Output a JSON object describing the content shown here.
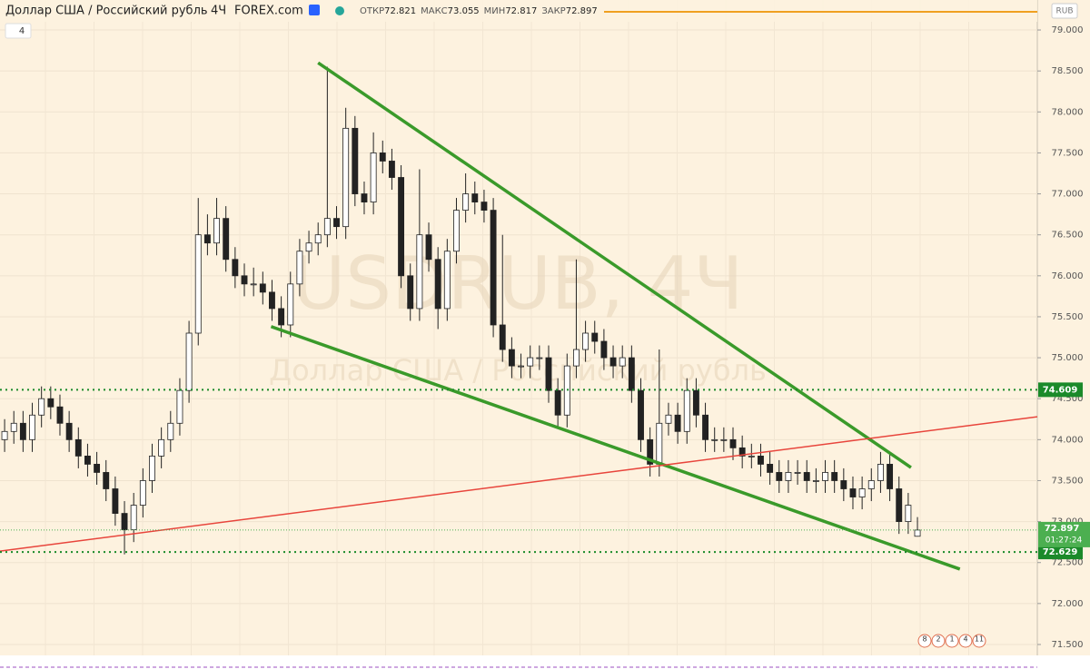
{
  "chart_data": {
    "type": "candlestick",
    "title": "Доллар США / Российский рубль",
    "interval": "4Ч",
    "source": "FOREX.com",
    "ohlc_labels": [
      "ОТКР",
      "МАКС",
      "МИН",
      "ЗАКР"
    ],
    "indicators_count": "4",
    "currency": "RUB",
    "watermark": "USDRUB, 4Ч",
    "countdown": "01:27:24",
    "up_color": "#ffffff",
    "down_color": "#222222",
    "wick_color": "#222222",
    "xlim": [
      -0.5,
      112.0
    ],
    "ylim": [
      71.367,
      79.366
    ],
    "yticks": [
      {
        "value": 71.5,
        "label": "71.500"
      },
      {
        "value": 72.0,
        "label": "72.000"
      },
      {
        "value": 72.5,
        "label": "72.500"
      },
      {
        "value": 73.0,
        "label": "73.000"
      },
      {
        "value": 73.5,
        "label": "73.500"
      },
      {
        "value": 74.0,
        "label": "74.000"
      },
      {
        "value": 74.5,
        "label": "74.500"
      },
      {
        "value": 75.0,
        "label": "75.000"
      },
      {
        "value": 75.5,
        "label": "75.500"
      },
      {
        "value": 76.0,
        "label": "76.000"
      },
      {
        "value": 76.5,
        "label": "76.500"
      },
      {
        "value": 77.0,
        "label": "77.000"
      },
      {
        "value": 77.5,
        "label": "77.500"
      },
      {
        "value": 78.0,
        "label": "78.000"
      },
      {
        "value": 78.5,
        "label": "78.500"
      },
      {
        "value": 79.0,
        "label": "79.000"
      }
    ],
    "grid": true,
    "candles": [
      [
        74.0,
        74.25,
        73.85,
        74.1
      ],
      [
        74.1,
        74.35,
        73.95,
        74.2
      ],
      [
        74.2,
        74.35,
        73.85,
        74.0
      ],
      [
        74.0,
        74.45,
        73.85,
        74.3
      ],
      [
        74.3,
        74.65,
        74.15,
        74.5
      ],
      [
        74.5,
        74.65,
        74.25,
        74.4
      ],
      [
        74.4,
        74.55,
        74.05,
        74.2
      ],
      [
        74.2,
        74.35,
        73.85,
        74.0
      ],
      [
        74.0,
        74.15,
        73.65,
        73.8
      ],
      [
        73.8,
        73.95,
        73.55,
        73.7
      ],
      [
        73.7,
        73.85,
        73.45,
        73.6
      ],
      [
        73.6,
        73.75,
        73.25,
        73.4
      ],
      [
        73.4,
        73.55,
        72.95,
        73.1
      ],
      [
        73.1,
        73.25,
        72.6,
        72.9
      ],
      [
        72.9,
        73.35,
        72.75,
        73.2
      ],
      [
        73.2,
        73.65,
        73.05,
        73.5
      ],
      [
        73.5,
        73.95,
        73.35,
        73.8
      ],
      [
        73.8,
        74.15,
        73.65,
        74.0
      ],
      [
        74.0,
        74.35,
        73.85,
        74.2
      ],
      [
        74.2,
        74.75,
        74.05,
        74.6
      ],
      [
        74.6,
        75.45,
        74.45,
        75.3
      ],
      [
        75.3,
        76.95,
        75.15,
        76.5
      ],
      [
        76.5,
        76.75,
        76.25,
        76.4
      ],
      [
        76.4,
        76.95,
        76.25,
        76.7
      ],
      [
        76.7,
        76.85,
        76.05,
        76.2
      ],
      [
        76.2,
        76.35,
        75.85,
        76.0
      ],
      [
        76.0,
        76.15,
        75.75,
        75.9
      ],
      [
        75.9,
        76.1,
        75.75,
        75.9
      ],
      [
        75.9,
        76.05,
        75.65,
        75.8
      ],
      [
        75.8,
        75.95,
        75.45,
        75.6
      ],
      [
        75.6,
        75.75,
        75.25,
        75.4
      ],
      [
        75.4,
        76.05,
        75.25,
        75.9
      ],
      [
        75.9,
        76.45,
        75.75,
        76.3
      ],
      [
        76.3,
        76.55,
        76.15,
        76.4
      ],
      [
        76.4,
        76.65,
        76.25,
        76.5
      ],
      [
        76.5,
        78.55,
        76.35,
        76.7
      ],
      [
        76.7,
        76.85,
        76.45,
        76.6
      ],
      [
        76.6,
        78.05,
        76.45,
        77.8
      ],
      [
        77.8,
        77.95,
        76.85,
        77.0
      ],
      [
        77.0,
        77.15,
        76.75,
        76.9
      ],
      [
        76.9,
        77.75,
        76.75,
        77.5
      ],
      [
        77.5,
        77.65,
        77.25,
        77.4
      ],
      [
        77.4,
        77.55,
        77.05,
        77.2
      ],
      [
        77.2,
        77.35,
        75.85,
        76.0
      ],
      [
        76.0,
        76.15,
        75.45,
        75.6
      ],
      [
        75.6,
        77.3,
        75.45,
        76.5
      ],
      [
        76.5,
        76.65,
        76.05,
        76.2
      ],
      [
        76.2,
        76.35,
        75.35,
        75.6
      ],
      [
        75.6,
        76.45,
        75.45,
        76.3
      ],
      [
        76.3,
        76.95,
        76.15,
        76.8
      ],
      [
        76.8,
        77.25,
        76.65,
        77.0
      ],
      [
        77.0,
        77.15,
        76.75,
        76.9
      ],
      [
        76.9,
        77.05,
        76.65,
        76.8
      ],
      [
        76.8,
        76.95,
        75.25,
        75.4
      ],
      [
        75.4,
        76.5,
        74.95,
        75.1
      ],
      [
        75.1,
        75.25,
        74.75,
        74.9
      ],
      [
        74.9,
        75.05,
        74.75,
        74.9
      ],
      [
        74.9,
        75.15,
        74.75,
        75.0
      ],
      [
        75.0,
        75.15,
        74.85,
        75.0
      ],
      [
        75.0,
        75.15,
        74.45,
        74.6
      ],
      [
        74.6,
        74.75,
        74.15,
        74.3
      ],
      [
        74.3,
        75.05,
        74.15,
        74.9
      ],
      [
        74.9,
        76.2,
        74.75,
        75.1
      ],
      [
        75.1,
        75.45,
        74.95,
        75.3
      ],
      [
        75.3,
        75.45,
        75.05,
        75.2
      ],
      [
        75.2,
        75.35,
        74.85,
        75.0
      ],
      [
        75.0,
        75.15,
        74.75,
        74.9
      ],
      [
        74.9,
        75.15,
        74.75,
        75.0
      ],
      [
        75.0,
        75.15,
        74.45,
        74.6
      ],
      [
        74.6,
        74.75,
        73.85,
        74.0
      ],
      [
        74.0,
        74.15,
        73.55,
        73.7
      ],
      [
        73.7,
        75.1,
        73.55,
        74.2
      ],
      [
        74.2,
        74.45,
        74.05,
        74.3
      ],
      [
        74.3,
        74.45,
        73.95,
        74.1
      ],
      [
        74.1,
        74.75,
        73.95,
        74.6
      ],
      [
        74.6,
        74.75,
        74.15,
        74.3
      ],
      [
        74.3,
        74.45,
        73.85,
        74.0
      ],
      [
        74.0,
        74.15,
        73.85,
        74.0
      ],
      [
        74.0,
        74.15,
        73.85,
        74.0
      ],
      [
        74.0,
        74.15,
        73.75,
        73.9
      ],
      [
        73.9,
        74.05,
        73.65,
        73.8
      ],
      [
        73.8,
        73.95,
        73.65,
        73.8
      ],
      [
        73.8,
        73.95,
        73.55,
        73.7
      ],
      [
        73.7,
        73.85,
        73.45,
        73.6
      ],
      [
        73.6,
        73.75,
        73.35,
        73.5
      ],
      [
        73.5,
        73.75,
        73.35,
        73.6
      ],
      [
        73.6,
        73.75,
        73.45,
        73.6
      ],
      [
        73.6,
        73.75,
        73.35,
        73.5
      ],
      [
        73.5,
        73.65,
        73.35,
        73.5
      ],
      [
        73.5,
        73.75,
        73.35,
        73.6
      ],
      [
        73.6,
        73.75,
        73.35,
        73.5
      ],
      [
        73.5,
        73.65,
        73.25,
        73.4
      ],
      [
        73.4,
        73.55,
        73.15,
        73.3
      ],
      [
        73.3,
        73.55,
        73.15,
        73.4
      ],
      [
        73.4,
        73.65,
        73.25,
        73.5
      ],
      [
        73.5,
        73.85,
        73.35,
        73.7
      ],
      [
        73.7,
        73.85,
        73.25,
        73.4
      ],
      [
        73.4,
        73.55,
        72.85,
        73.0
      ],
      [
        73.0,
        73.35,
        72.85,
        73.2
      ],
      [
        72.821,
        73.055,
        72.817,
        72.897
      ]
    ],
    "levels": [
      {
        "value": 74.609,
        "color": "#1b8a2a"
      },
      {
        "value": 72.629,
        "color": "#1b8a2a"
      }
    ],
    "price_line_color": "#4caf50",
    "trendlines": [
      {
        "color": "#3a9a2a",
        "x": [
          34.0,
          98.3
        ],
        "y": [
          78.6,
          73.66
        ]
      },
      {
        "color": "#3a9a2a",
        "x": [
          28.9,
          103.6
        ],
        "y": [
          75.38,
          72.42
        ]
      },
      {
        "color": "#e8453c",
        "x": [
          -0.5,
          112.0
        ],
        "y": [
          72.64,
          74.28
        ]
      }
    ],
    "events": [
      "8",
      "2",
      "1",
      "4",
      "11"
    ]
  }
}
